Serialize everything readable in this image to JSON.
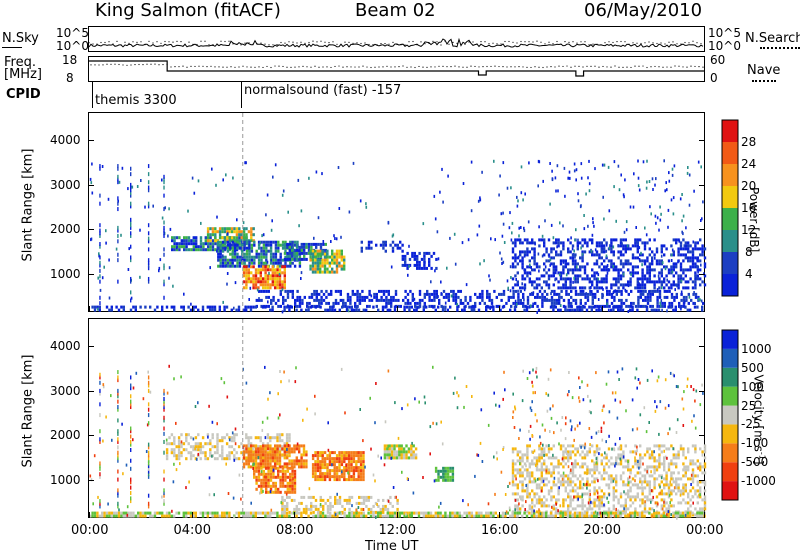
{
  "header": {
    "station": "King Salmon (fitACF)",
    "beam": "Beam 02",
    "date": "06/May/2010"
  },
  "top_panels": {
    "nsky_label": "N.Sky",
    "nsky_ticks": [
      "10^5",
      "10^0"
    ],
    "nsearch_label": "N.Search",
    "freq_label_1": "Freq.",
    "freq_label_2": "[MHz]",
    "freq_ticks": [
      "18",
      "8"
    ],
    "nave_ticks": [
      "60",
      "0"
    ],
    "nave_label": "Nave",
    "cpid_label": "CPID",
    "cpid_segments": [
      {
        "start_hour": 0,
        "label": "themis 3300"
      },
      {
        "start_hour": 6,
        "label": "normalsound (fast) -157"
      }
    ]
  },
  "colors": {
    "power_scale": [
      "#0a22d8",
      "#1c3fc2",
      "#2a8f8a",
      "#3cb04a",
      "#f2c90f",
      "#f7921e",
      "#f25a16",
      "#e01212"
    ],
    "velocity_scale": [
      "#0a22d8",
      "#1f5fb8",
      "#2a8f6e",
      "#5ec23c",
      "#c8c8c0",
      "#f5b70f",
      "#f57d1a",
      "#f04010",
      "#e01212"
    ]
  },
  "chart_data": [
    {
      "type": "heatmap",
      "name": "power",
      "ylabel": "Slant Range [km]",
      "ylim": [
        180,
        4600
      ],
      "yticks": [
        1000,
        2000,
        3000,
        4000
      ],
      "xlim_hours": [
        0,
        24
      ],
      "colorbar_label": "Power [dB]",
      "colorbar_ticks": [
        "4",
        "8",
        "12",
        "16",
        "20",
        "24",
        "28"
      ],
      "regions": [
        {
          "t0": 3.2,
          "t1": 6.2,
          "r0": 1550,
          "r1": 1850,
          "level": "mid"
        },
        {
          "t0": 4.6,
          "t1": 6.4,
          "r0": 1750,
          "r1": 2050,
          "level": "high"
        },
        {
          "t0": 5.0,
          "t1": 8.2,
          "r0": 1200,
          "r1": 1750,
          "level": "mid"
        },
        {
          "t0": 6.0,
          "t1": 7.6,
          "r0": 700,
          "r1": 1200,
          "level": "max"
        },
        {
          "t0": 7.6,
          "t1": 9.2,
          "r0": 1300,
          "r1": 1700,
          "level": "mid"
        },
        {
          "t0": 8.6,
          "t1": 10.0,
          "r0": 1050,
          "r1": 1550,
          "level": "high"
        },
        {
          "t0": 10.6,
          "t1": 12.2,
          "r0": 1500,
          "r1": 1750,
          "level": "low"
        },
        {
          "t0": 12.2,
          "t1": 13.6,
          "r0": 1150,
          "r1": 1500,
          "level": "low"
        },
        {
          "t0": 6.5,
          "t1": 24.0,
          "r0": 300,
          "r1": 650,
          "level": "low"
        },
        {
          "t0": 0.0,
          "t1": 24.0,
          "r0": 180,
          "r1": 300,
          "level": "low"
        },
        {
          "t0": 16.5,
          "t1": 24.0,
          "r0": 700,
          "r1": 1800,
          "level": "low"
        }
      ]
    },
    {
      "type": "heatmap",
      "name": "velocity",
      "ylabel": "Slant Range [km]",
      "xlabel": "Time UT",
      "ylim": [
        180,
        4600
      ],
      "yticks": [
        1000,
        2000,
        3000,
        4000
      ],
      "xlim_hours": [
        0,
        24
      ],
      "xticks": [
        "00:00",
        "04:00",
        "08:00",
        "12:00",
        "16:00",
        "20:00",
        "00:00"
      ],
      "colorbar_label": "Velocity [m s",
      "colorbar_superscript": "-1",
      "colorbar_ticks": [
        "1000",
        "500",
        "100",
        "25",
        "-25",
        "-100",
        "-500",
        "-1000"
      ],
      "regions": [
        {
          "t0": 3.0,
          "t1": 7.8,
          "r0": 1500,
          "r1": 2050,
          "level": "gray"
        },
        {
          "t0": 6.0,
          "t1": 8.5,
          "r0": 1300,
          "r1": 1800,
          "level": "orange"
        },
        {
          "t0": 6.4,
          "t1": 8.0,
          "r0": 700,
          "r1": 1300,
          "level": "orange"
        },
        {
          "t0": 8.7,
          "t1": 10.7,
          "r0": 1000,
          "r1": 1650,
          "level": "orange"
        },
        {
          "t0": 11.5,
          "t1": 12.8,
          "r0": 1500,
          "r1": 1800,
          "level": "amber"
        },
        {
          "t0": 13.5,
          "t1": 14.2,
          "r0": 1000,
          "r1": 1300,
          "level": "green"
        },
        {
          "t0": 7.5,
          "t1": 12.0,
          "r0": 300,
          "r1": 650,
          "level": "gray"
        },
        {
          "t0": 16.5,
          "t1": 24.0,
          "r0": 250,
          "r1": 1800,
          "level": "gray"
        },
        {
          "t0": 0.0,
          "t1": 24.0,
          "r0": 180,
          "r1": 300,
          "level": "amber"
        }
      ]
    }
  ]
}
